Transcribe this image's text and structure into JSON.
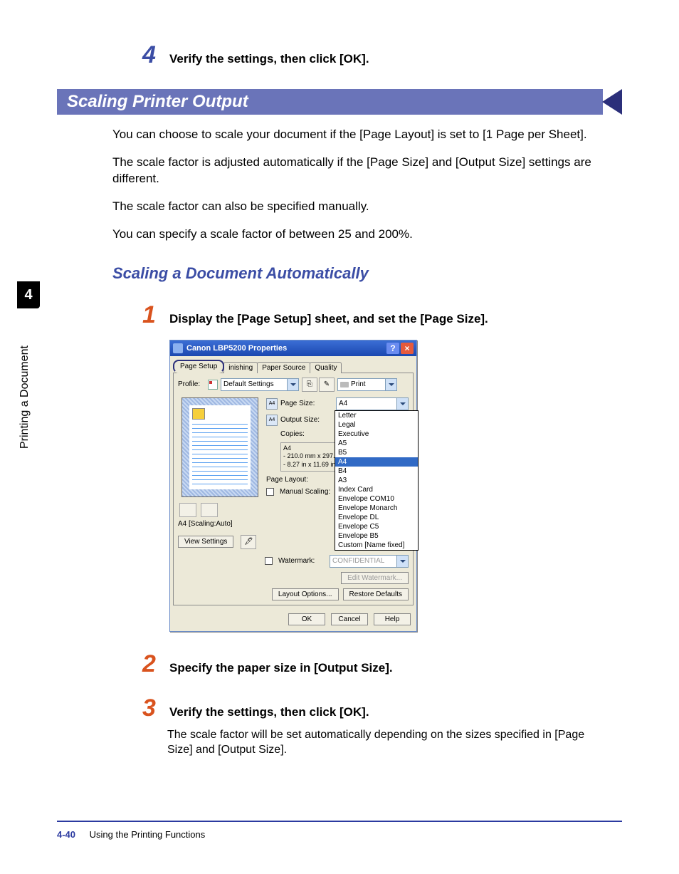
{
  "chapter_tab": "4",
  "sidebar_label": "Printing a Document",
  "top_step": {
    "num": "4",
    "text": "Verify the settings, then click [OK]."
  },
  "banner": {
    "title": "Scaling Printer Output",
    "bg": "#6a74b9",
    "arrow": "#2b2f7a"
  },
  "intro": {
    "p1": "You can choose to scale your document if the [Page Layout] is set to [1 Page per Sheet].",
    "p2": "The scale factor is adjusted automatically if the [Page Size] and [Output Size] settings are different.",
    "p3": "The scale factor can also be specified manually.",
    "p4": "You can specify a scale factor of between 25 and 200%."
  },
  "subhead": "Scaling a Document Automatically",
  "steps": {
    "s1": {
      "num": "1",
      "text": "Display the [Page Setup] sheet, and set the [Page Size]."
    },
    "s2": {
      "num": "2",
      "text": "Specify the paper size in [Output Size]."
    },
    "s3": {
      "num": "3",
      "text": "Verify the settings, then click [OK].",
      "body": "The scale factor will be set automatically depending on the sizes specified in [Page Size] and [Output Size]."
    }
  },
  "dialog": {
    "title": "Canon LBP5200 Properties",
    "help_btn": "?",
    "close_btn": "×",
    "tabs": {
      "active": "Page Setup",
      "t2": "inishing",
      "t3": "Paper Source",
      "t4": "Quality"
    },
    "profile": {
      "label": "Profile:",
      "value": "Default Settings",
      "print": "Print"
    },
    "page_size": {
      "icon": "A4",
      "label": "Page Size:",
      "value": "A4"
    },
    "output_size": {
      "icon": "A4",
      "label": "Output Size:"
    },
    "copies_label": "Copies:",
    "dims": {
      "header": "A4",
      "mm": "- 210.0 mm x 297.0 m",
      "in": "- 8.27 in x 11.69 in"
    },
    "page_layout_label": "Page Layout:",
    "manual_scaling_label": "Manual Scaling:",
    "preview_label": "A4 [Scaling:Auto]",
    "view_settings": "View Settings",
    "watermark_label": "Watermark:",
    "watermark_value": "CONFIDENTIAL",
    "edit_watermark": "Edit Watermark...",
    "layout_options": "Layout Options...",
    "restore_defaults": "Restore Defaults",
    "ok": "OK",
    "cancel": "Cancel",
    "help": "Help",
    "options": [
      "Letter",
      "Legal",
      "Executive",
      "A5",
      "B5",
      "A4",
      "B4",
      "A3",
      "Index Card",
      "Envelope COM10",
      "Envelope Monarch",
      "Envelope DL",
      "Envelope C5",
      "Envelope B5",
      "Custom [Name fixed]"
    ],
    "selected_option": "A4"
  },
  "footer": {
    "pagenum": "4-40",
    "section": "Using the Printing Functions"
  }
}
